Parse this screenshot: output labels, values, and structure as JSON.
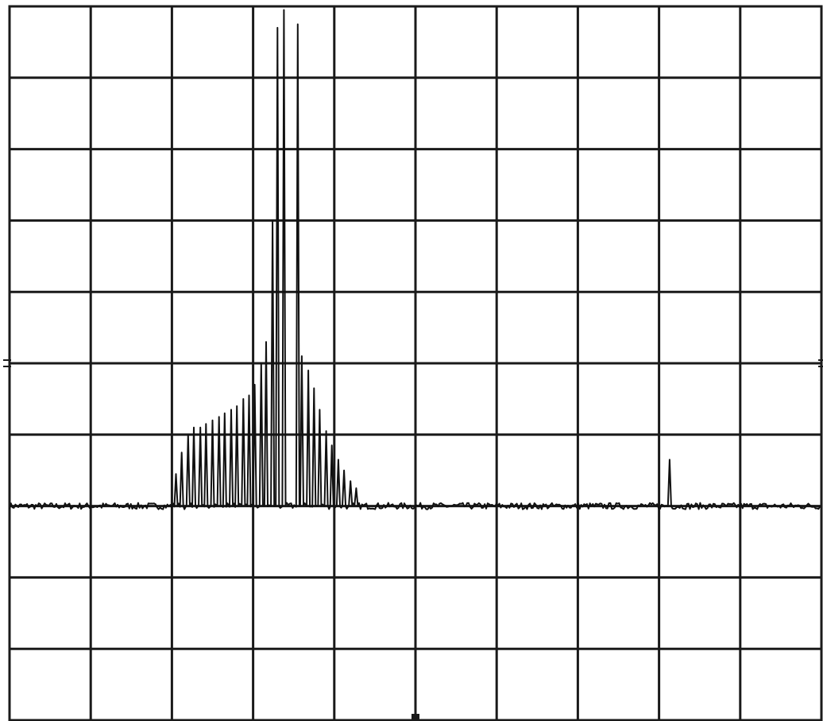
{
  "chart_data": {
    "type": "line",
    "title": "",
    "xlabel": "",
    "ylabel": "",
    "grid": true,
    "divisions": {
      "x": 10,
      "y": 10
    },
    "xlim": [
      0,
      10
    ],
    "ylim": [
      0,
      10
    ],
    "reference_level_div": 5,
    "series": [
      {
        "values": {
          "baseline_y": 3.0,
          "peaks": [
            {
              "x": 2.05,
              "y": 3.45
            },
            {
              "x": 2.12,
              "y": 3.75
            },
            {
              "x": 2.2,
              "y": 4.0
            },
            {
              "x": 2.27,
              "y": 4.1
            },
            {
              "x": 2.35,
              "y": 4.1
            },
            {
              "x": 2.42,
              "y": 4.15
            },
            {
              "x": 2.5,
              "y": 4.2
            },
            {
              "x": 2.58,
              "y": 4.25
            },
            {
              "x": 2.65,
              "y": 4.3
            },
            {
              "x": 2.73,
              "y": 4.35
            },
            {
              "x": 2.8,
              "y": 4.4
            },
            {
              "x": 2.88,
              "y": 4.5
            },
            {
              "x": 2.95,
              "y": 4.55
            },
            {
              "x": 3.02,
              "y": 4.7
            },
            {
              "x": 3.1,
              "y": 5.0
            },
            {
              "x": 3.16,
              "y": 5.3
            },
            {
              "x": 3.24,
              "y": 7.0
            },
            {
              "x": 3.3,
              "y": 9.7
            },
            {
              "x": 3.38,
              "y": 9.95
            },
            {
              "x": 3.55,
              "y": 9.75
            },
            {
              "x": 3.6,
              "y": 5.1
            },
            {
              "x": 3.68,
              "y": 4.9
            },
            {
              "x": 3.75,
              "y": 4.65
            },
            {
              "x": 3.82,
              "y": 4.35
            },
            {
              "x": 3.9,
              "y": 4.05
            },
            {
              "x": 3.97,
              "y": 3.85
            },
            {
              "x": 4.05,
              "y": 3.65
            },
            {
              "x": 4.12,
              "y": 3.5
            },
            {
              "x": 4.2,
              "y": 3.35
            },
            {
              "x": 4.27,
              "y": 3.25
            },
            {
              "x": 8.13,
              "y": 3.65
            }
          ]
        }
      }
    ]
  },
  "colors": {
    "trace": "#111111",
    "grid": "#1a1a1a",
    "background": "#ffffff"
  }
}
